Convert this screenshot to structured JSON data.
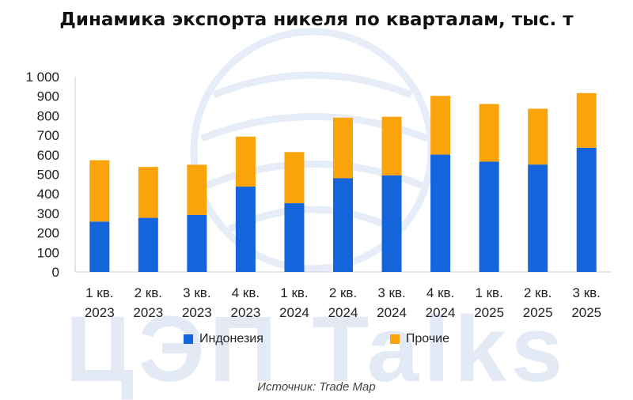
{
  "title": "Динамика экспорта никеля по кварталам, тыс. т",
  "source_note": "Источник: Trade Map",
  "watermark": {
    "text": "ЦЭП Talks",
    "color": "#e3eaf6"
  },
  "chart_data": {
    "type": "bar",
    "stacked": true,
    "categories": [
      [
        "1 кв.",
        "2023"
      ],
      [
        "2 кв.",
        "2023"
      ],
      [
        "3 кв.",
        "2023"
      ],
      [
        "4 кв.",
        "2023"
      ],
      [
        "1 кв.",
        "2024"
      ],
      [
        "2 кв.",
        "2024"
      ],
      [
        "3 кв.",
        "2024"
      ],
      [
        "4 кв.",
        "2024"
      ],
      [
        "1 кв.",
        "2025"
      ],
      [
        "2 кв.",
        "2025"
      ],
      [
        "3 кв.",
        "2025"
      ]
    ],
    "series": [
      {
        "name": "Индонезия",
        "color": "#1464dc",
        "values": [
          258,
          277,
          292,
          437,
          352,
          480,
          495,
          601,
          565,
          550,
          636
        ]
      },
      {
        "name": "Прочие",
        "color": "#fba30b",
        "values": [
          314,
          261,
          257,
          256,
          262,
          310,
          300,
          301,
          295,
          286,
          280
        ]
      }
    ],
    "ylim": [
      0,
      1000
    ],
    "yticks": [
      0,
      100,
      200,
      300,
      400,
      500,
      600,
      700,
      800,
      900,
      1000
    ],
    "ytick_labels": [
      "0",
      "100",
      "200",
      "300",
      "400",
      "500",
      "600",
      "700",
      "800",
      "900",
      "1 000"
    ],
    "grid": false,
    "legend_position": "bottom-center"
  }
}
